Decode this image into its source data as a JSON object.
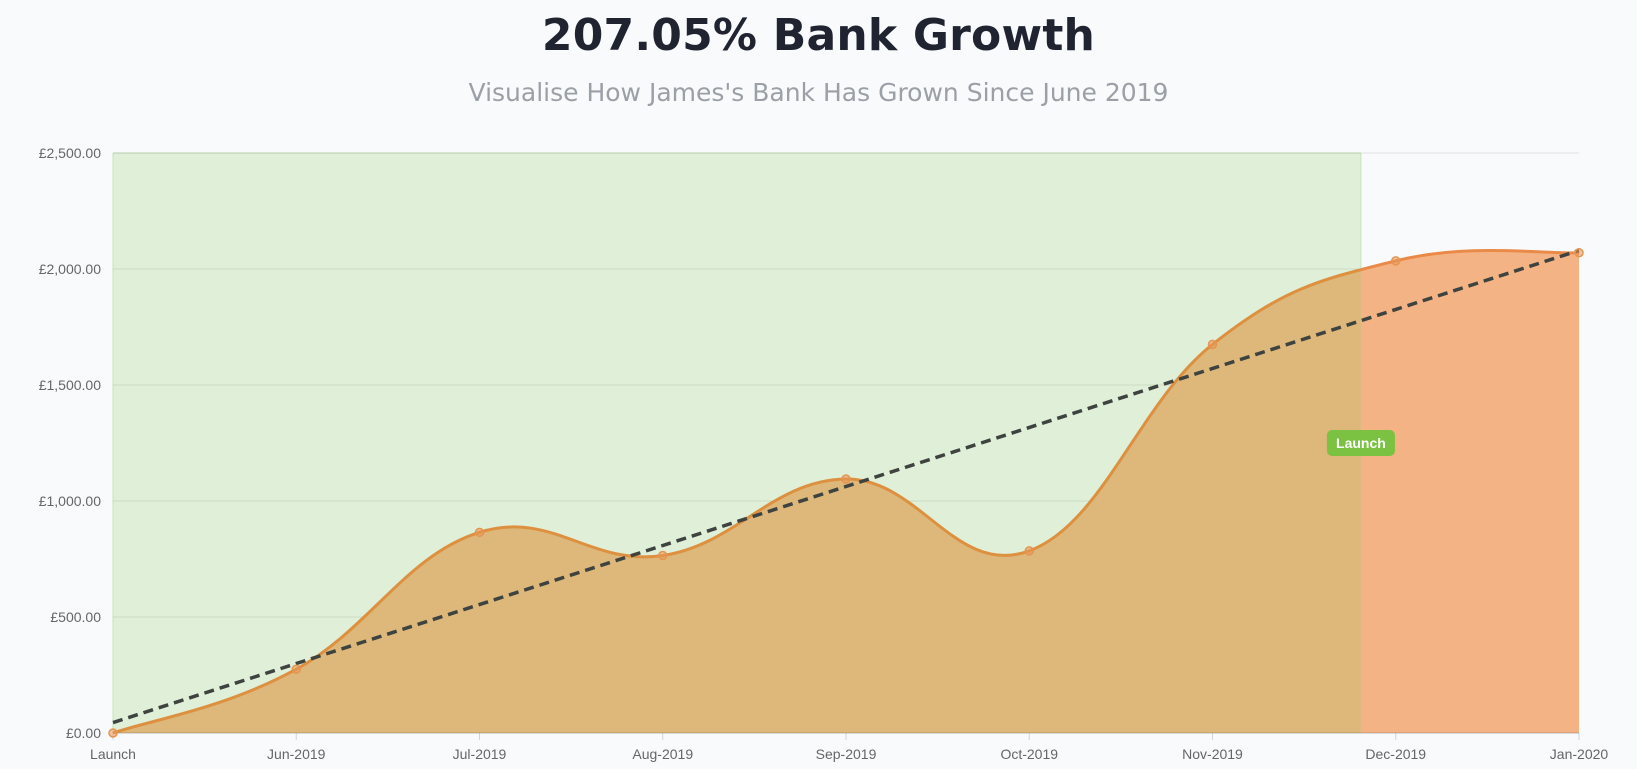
{
  "header": {
    "title": "207.05% Bank Growth",
    "subtitle": "Visualise How James's Bank Has Grown Since June 2019"
  },
  "colors": {
    "background": "#f8fafc",
    "projection_region": "#e0f0d8",
    "area_fill": "#ddb87a",
    "area_fill_future": "#f4b384",
    "line": "#dd9040",
    "line_future": "#ea8a48",
    "trend_line": "#3f4340",
    "badge": "#7cc242",
    "grid": "#e3e6e3"
  },
  "annotation": {
    "label": "Launch"
  },
  "chart_data": {
    "type": "area",
    "title": "207.05% Bank Growth",
    "subtitle": "Visualise How James's Bank Has Grown Since June 2019",
    "categories": [
      "Launch",
      "Jun-2019",
      "Jul-2019",
      "Aug-2019",
      "Sep-2019",
      "Oct-2019",
      "Nov-2019",
      "Dec-2019",
      "Jan-2020"
    ],
    "series": [
      {
        "values": [
          0,
          275,
          865,
          765,
          1095,
          785,
          1675,
          2035,
          2070
        ]
      }
    ],
    "trend_line": {
      "style": "dashed",
      "start": 45,
      "end": 2080
    },
    "highlight_region": {
      "from": "Launch",
      "to_position": 6.81,
      "label": "Launch"
    },
    "ylim": [
      0,
      2500
    ],
    "yticks": [
      {
        "value": 0,
        "label": "£0.00"
      },
      {
        "value": 500,
        "label": "£500.00"
      },
      {
        "value": 1000,
        "label": "£1,000.00"
      },
      {
        "value": 1500,
        "label": "£1,500.00"
      },
      {
        "value": 2000,
        "label": "£2,000.00"
      },
      {
        "value": 2500,
        "label": "£2,500.00"
      }
    ],
    "xlabel": "",
    "ylabel": "",
    "grid": true,
    "legend": "none"
  }
}
